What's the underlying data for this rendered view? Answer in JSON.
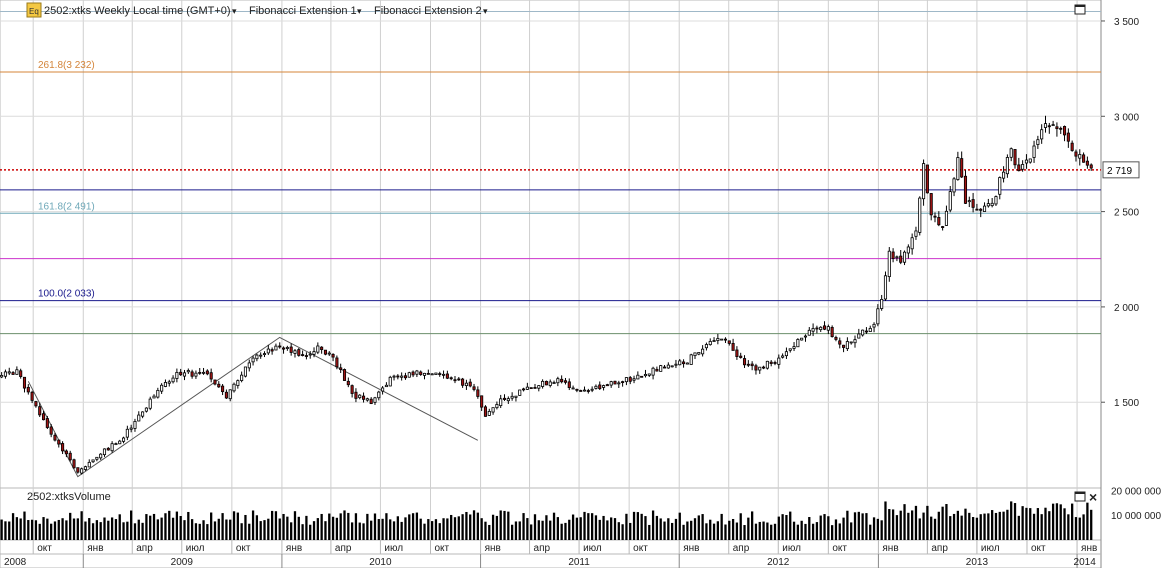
{
  "header": {
    "icon_label": "Eq",
    "symbol_label": "2502:xtks Weekly Local time (GMT+0)",
    "study1": "Fibonacci Extension 1",
    "study2": "Fibonacci Extension 2",
    "dropdown_glyph": "▾"
  },
  "volume_panel": {
    "title": "2502:xtksVolume",
    "close_glyph": "×"
  },
  "chart_data": {
    "type": "candlestick",
    "price_axis": {
      "range": [
        1050,
        3610
      ],
      "ticks": [
        1500,
        2000,
        2500,
        3000,
        3500
      ],
      "tick_labels": [
        "1 500",
        "2 000",
        "2 500",
        "3 000",
        "3 500"
      ]
    },
    "volume_axis": {
      "range": [
        0,
        21000000
      ],
      "ticks": [
        10000000,
        20000000
      ],
      "tick_labels": [
        "10 000 000",
        "20 000 000"
      ]
    },
    "last_price": {
      "value": 2719,
      "label": "2 719",
      "color": "#cc0000"
    },
    "fib_levels": [
      {
        "label": "261.8(3 232)",
        "value": 3232,
        "color": "#d4853a"
      },
      {
        "label": "161.8(2 491)",
        "value": 2491,
        "color": "#6fa8b8"
      },
      {
        "label": "100.0(2 033)",
        "value": 2033,
        "color": "#1a1a8c"
      }
    ],
    "other_levels": [
      {
        "value": 3550,
        "color": "#9fb8c8"
      },
      {
        "value": 2614,
        "color": "#1a1a8c"
      },
      {
        "value": 2253,
        "color": "#cc33cc"
      },
      {
        "value": 1860,
        "color": "#6b8f6b"
      }
    ],
    "fib_zigzag": [
      {
        "date": "2008-09-22",
        "price": 1610
      },
      {
        "date": "2008-12-22",
        "price": 1110
      },
      {
        "date": "2009-12-28",
        "price": 1840
      },
      {
        "date": "2010-12-27",
        "price": 1300
      }
    ],
    "month_ticks": [
      {
        "label": "окт",
        "date": "2008-10-01"
      },
      {
        "label": "янв",
        "date": "2009-01-01"
      },
      {
        "label": "апр",
        "date": "2009-04-01"
      },
      {
        "label": "июл",
        "date": "2009-07-01"
      },
      {
        "label": "окт",
        "date": "2009-10-01"
      },
      {
        "label": "янв",
        "date": "2010-01-01"
      },
      {
        "label": "апр",
        "date": "2010-04-01"
      },
      {
        "label": "июл",
        "date": "2010-07-01"
      },
      {
        "label": "окт",
        "date": "2010-10-01"
      },
      {
        "label": "янв",
        "date": "2011-01-01"
      },
      {
        "label": "апр",
        "date": "2011-04-01"
      },
      {
        "label": "июл",
        "date": "2011-07-01"
      },
      {
        "label": "окт",
        "date": "2011-10-01"
      },
      {
        "label": "янв",
        "date": "2012-01-01"
      },
      {
        "label": "апр",
        "date": "2012-04-01"
      },
      {
        "label": "июл",
        "date": "2012-07-01"
      },
      {
        "label": "окт",
        "date": "2012-10-01"
      },
      {
        "label": "янв",
        "date": "2013-01-01"
      },
      {
        "label": "апр",
        "date": "2013-04-01"
      },
      {
        "label": "июл",
        "date": "2013-07-01"
      },
      {
        "label": "окт",
        "date": "2013-10-01"
      },
      {
        "label": "янв",
        "date": "2014-01-01"
      }
    ],
    "years": [
      {
        "label": "2008",
        "date": "2008-06-01"
      },
      {
        "label": "2009",
        "date": "2009-07-01"
      },
      {
        "label": "2010",
        "date": "2010-07-01"
      },
      {
        "label": "2011",
        "date": "2011-07-01"
      },
      {
        "label": "2012",
        "date": "2012-07-01"
      },
      {
        "label": "2013",
        "date": "2013-07-01"
      },
      {
        "label": "2014",
        "date": "2014-01-15"
      }
    ],
    "year_boundaries": [
      "2009-01-01",
      "2010-01-01",
      "2011-01-01",
      "2012-01-01",
      "2013-01-01",
      "2014-01-01"
    ],
    "date_range": [
      "2008-08-01",
      "2014-02-14"
    ],
    "price_path": [
      {
        "date": "2008-08-04",
        "price": 1640
      },
      {
        "date": "2008-09-01",
        "price": 1660
      },
      {
        "date": "2008-10-06",
        "price": 1480
      },
      {
        "date": "2008-11-03",
        "price": 1340
      },
      {
        "date": "2008-12-22",
        "price": 1130
      },
      {
        "date": "2009-02-02",
        "price": 1230
      },
      {
        "date": "2009-03-09",
        "price": 1300
      },
      {
        "date": "2009-04-13",
        "price": 1420
      },
      {
        "date": "2009-05-18",
        "price": 1560
      },
      {
        "date": "2009-06-22",
        "price": 1660
      },
      {
        "date": "2009-08-17",
        "price": 1640
      },
      {
        "date": "2009-09-21",
        "price": 1530
      },
      {
        "date": "2009-11-02",
        "price": 1720
      },
      {
        "date": "2009-12-28",
        "price": 1800
      },
      {
        "date": "2010-02-08",
        "price": 1740
      },
      {
        "date": "2010-03-15",
        "price": 1790
      },
      {
        "date": "2010-04-12",
        "price": 1700
      },
      {
        "date": "2010-05-10",
        "price": 1540
      },
      {
        "date": "2010-06-14",
        "price": 1500
      },
      {
        "date": "2010-07-19",
        "price": 1620
      },
      {
        "date": "2010-09-06",
        "price": 1650
      },
      {
        "date": "2010-10-18",
        "price": 1640
      },
      {
        "date": "2010-11-22",
        "price": 1610
      },
      {
        "date": "2010-12-20",
        "price": 1580
      },
      {
        "date": "2011-01-10",
        "price": 1420
      },
      {
        "date": "2011-02-07",
        "price": 1510
      },
      {
        "date": "2011-04-04",
        "price": 1580
      },
      {
        "date": "2011-05-23",
        "price": 1620
      },
      {
        "date": "2011-07-04",
        "price": 1560
      },
      {
        "date": "2011-09-05",
        "price": 1600
      },
      {
        "date": "2011-10-24",
        "price": 1640
      },
      {
        "date": "2011-12-05",
        "price": 1690
      },
      {
        "date": "2012-01-16",
        "price": 1720
      },
      {
        "date": "2012-02-27",
        "price": 1820
      },
      {
        "date": "2012-03-26",
        "price": 1830
      },
      {
        "date": "2012-04-23",
        "price": 1720
      },
      {
        "date": "2012-05-21",
        "price": 1680
      },
      {
        "date": "2012-06-25",
        "price": 1720
      },
      {
        "date": "2012-07-30",
        "price": 1800
      },
      {
        "date": "2012-09-03",
        "price": 1900
      },
      {
        "date": "2012-10-01",
        "price": 1880
      },
      {
        "date": "2012-10-29",
        "price": 1790
      },
      {
        "date": "2012-11-26",
        "price": 1850
      },
      {
        "date": "2012-12-24",
        "price": 1900
      },
      {
        "date": "2013-01-07",
        "price": 2050
      },
      {
        "date": "2013-01-21",
        "price": 2280
      },
      {
        "date": "2013-02-11",
        "price": 2230
      },
      {
        "date": "2013-03-11",
        "price": 2380
      },
      {
        "date": "2013-03-25",
        "price": 2760
      },
      {
        "date": "2013-04-08",
        "price": 2480
      },
      {
        "date": "2013-04-29",
        "price": 2400
      },
      {
        "date": "2013-05-13",
        "price": 2600
      },
      {
        "date": "2013-05-27",
        "price": 2770
      },
      {
        "date": "2013-06-10",
        "price": 2560
      },
      {
        "date": "2013-07-01",
        "price": 2520
      },
      {
        "date": "2013-07-29",
        "price": 2530
      },
      {
        "date": "2013-08-19",
        "price": 2720
      },
      {
        "date": "2013-09-02",
        "price": 2840
      },
      {
        "date": "2013-09-16",
        "price": 2700
      },
      {
        "date": "2013-10-07",
        "price": 2780
      },
      {
        "date": "2013-11-04",
        "price": 2960
      },
      {
        "date": "2013-11-25",
        "price": 2950
      },
      {
        "date": "2013-12-16",
        "price": 2850
      },
      {
        "date": "2014-01-06",
        "price": 2780
      },
      {
        "date": "2014-01-27",
        "price": 2719
      }
    ]
  }
}
